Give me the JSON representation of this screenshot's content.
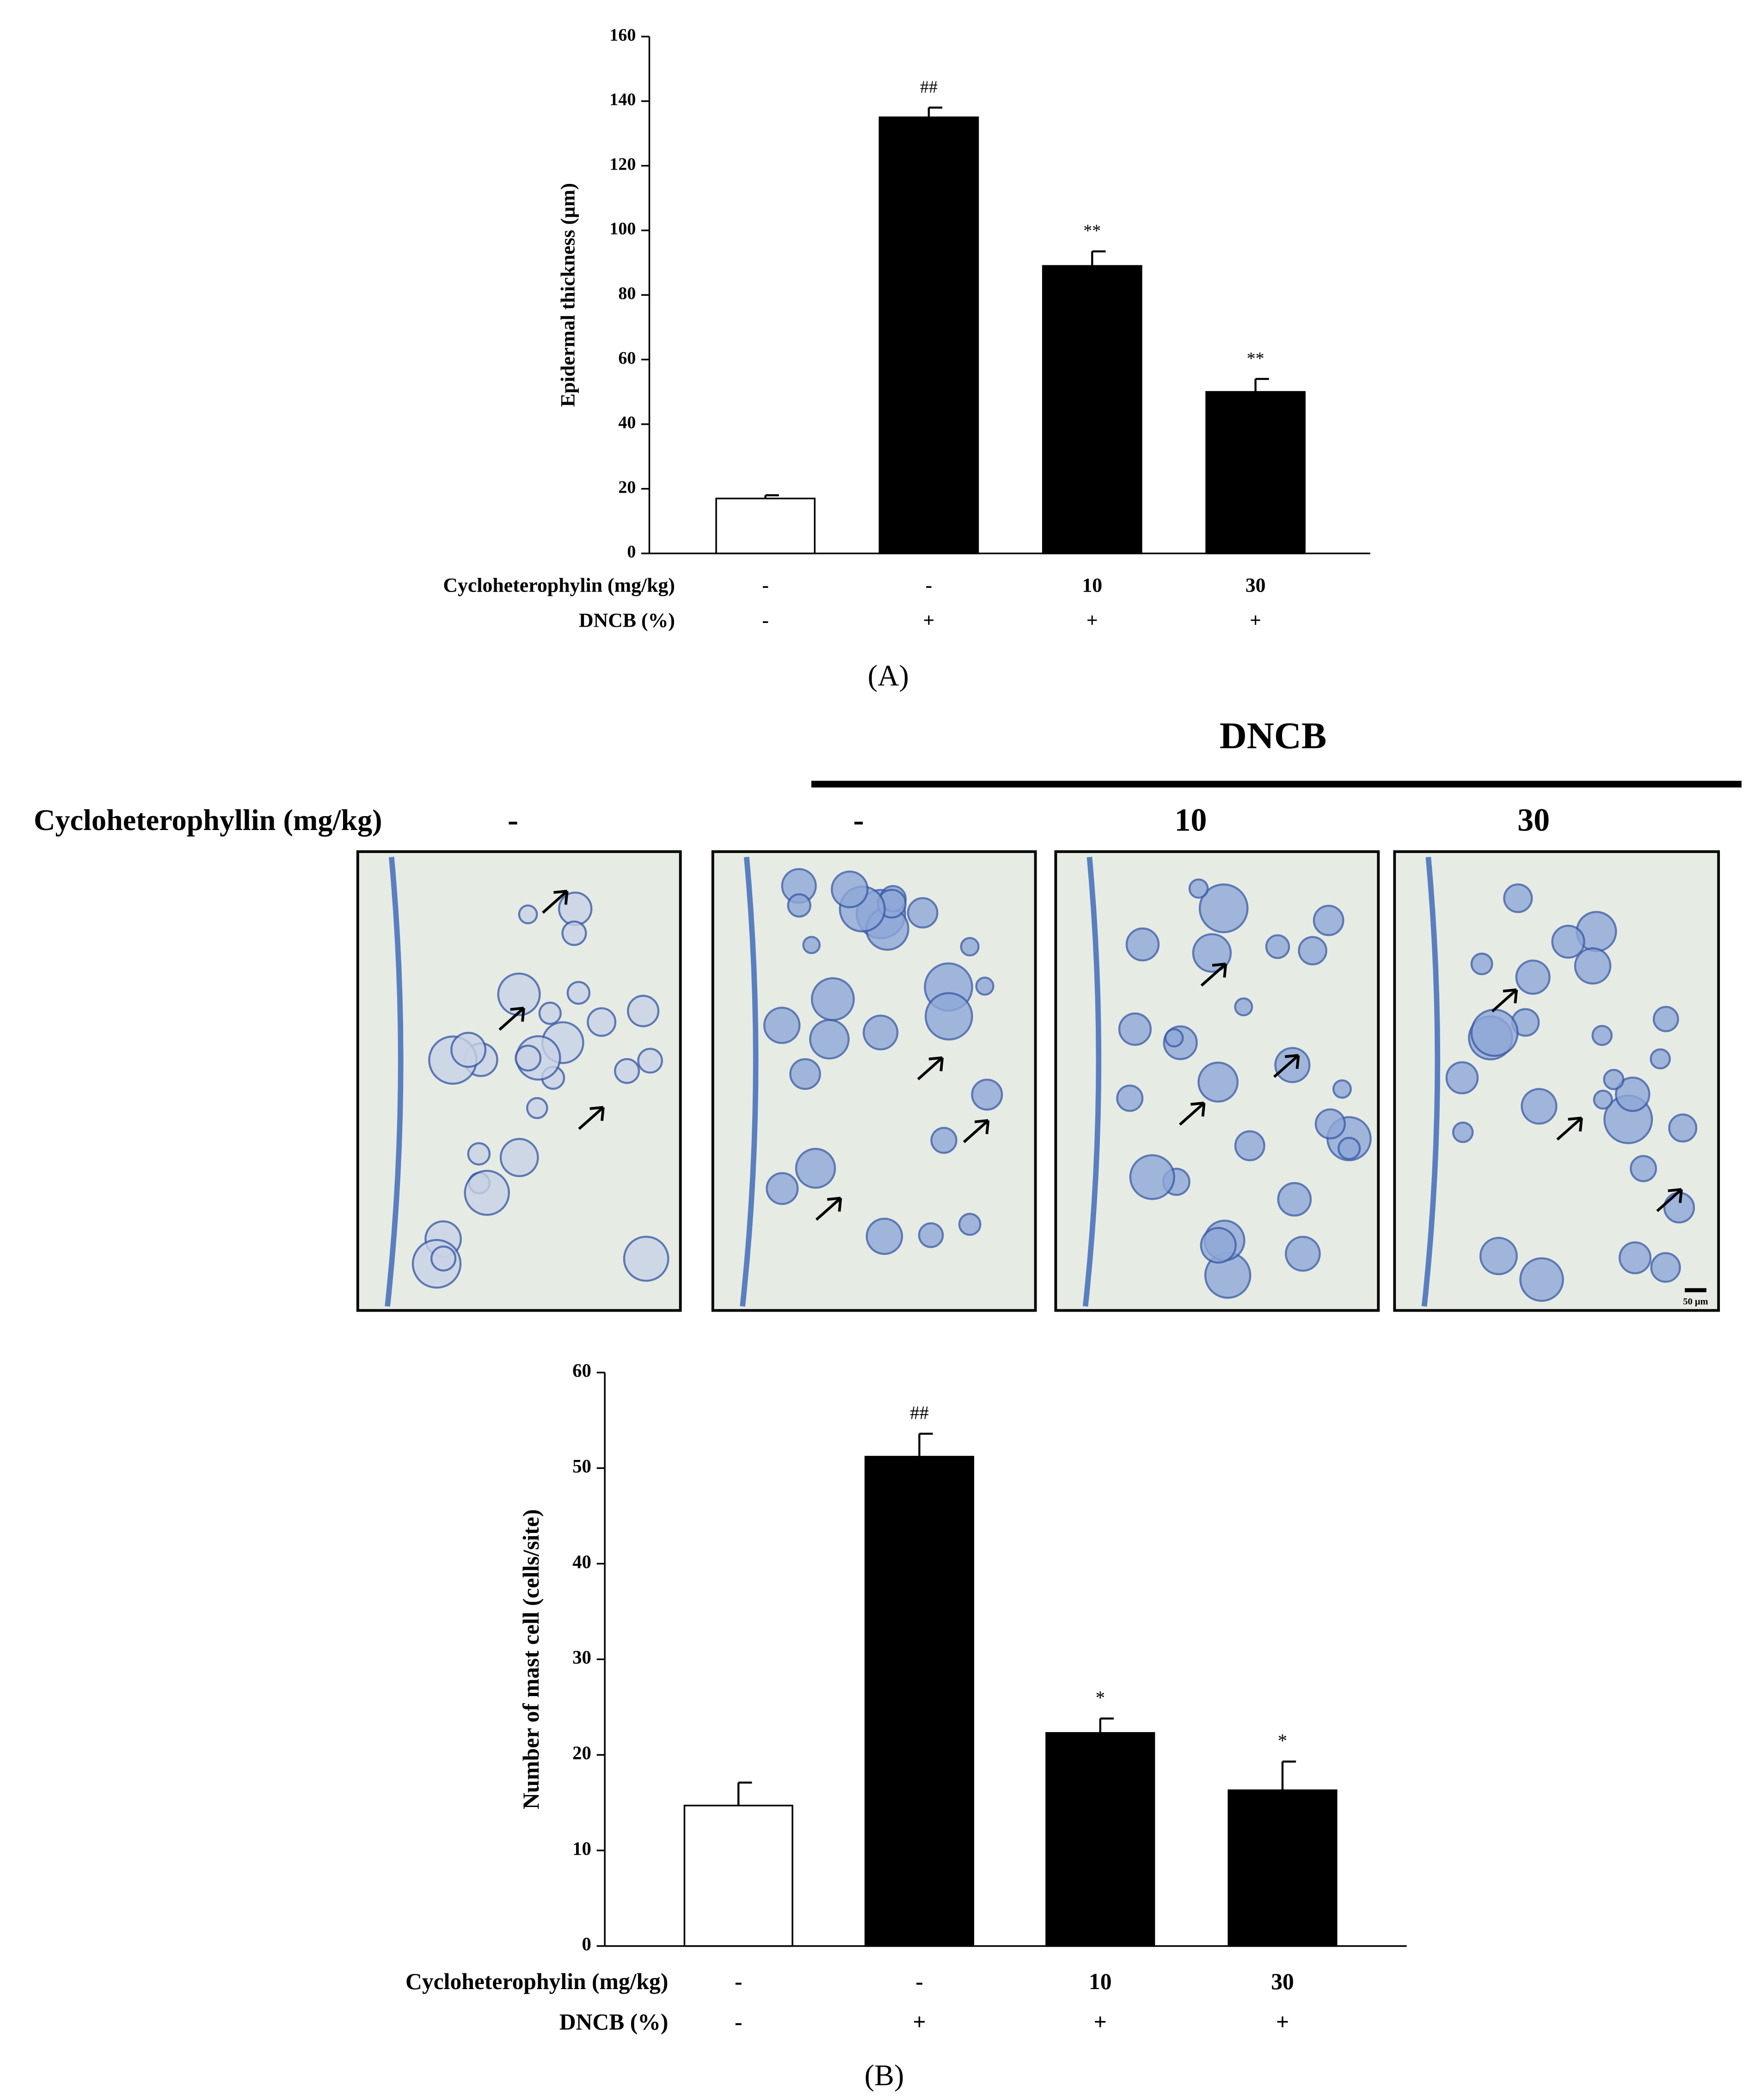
{
  "chart_data": [
    {
      "type": "bar",
      "panel_label": "(A)",
      "y_label": "Epidermal thickness (μm)",
      "values": [
        17,
        135,
        89,
        50
      ],
      "errors": [
        1,
        3,
        4.5,
        4
      ],
      "annotations": [
        null,
        "##",
        "**",
        "**"
      ],
      "colors": [
        "#ffffff",
        "#000000",
        "#000000",
        "#000000"
      ],
      "ylim": [
        0,
        160
      ],
      "yticks": [
        0,
        20,
        40,
        60,
        80,
        100,
        120,
        140,
        160
      ],
      "row_labels": [
        "Cycloheterophylin (mg/kg)",
        "DNCB (%)"
      ],
      "rows": [
        [
          "-",
          "-",
          "10",
          "30"
        ],
        [
          "-",
          "+",
          "+",
          "+"
        ]
      ]
    },
    {
      "type": "bar",
      "panel_label": "(B)",
      "y_label": "Number of mast cell (cells/site)",
      "values": [
        14.7,
        51.2,
        22.3,
        16.3
      ],
      "errors": [
        2.4,
        2.4,
        1.5,
        3
      ],
      "annotations": [
        null,
        "##",
        "*",
        "*"
      ],
      "colors": [
        "#ffffff",
        "#000000",
        "#000000",
        "#000000"
      ],
      "ylim": [
        0,
        60
      ],
      "yticks": [
        0,
        10,
        20,
        30,
        40,
        50,
        60
      ],
      "row_labels": [
        "Cycloheterophylin (mg/kg)",
        "DNCB (%)"
      ],
      "rows": [
        [
          "-",
          "-",
          "10",
          "30"
        ],
        [
          "-",
          "+",
          "+",
          "+"
        ]
      ]
    }
  ],
  "micrographs": {
    "group_label": "DNCB",
    "row_label": "Cycloheterophyllin (mg/kg)",
    "doses": [
      "-",
      "-",
      "10",
      "30"
    ],
    "scale_bar": "50 μm"
  }
}
